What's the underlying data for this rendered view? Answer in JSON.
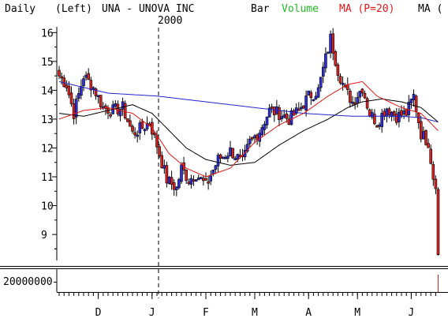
{
  "header": {
    "period": "Daily",
    "scale": "(Left)",
    "ticker": "UNA - UNOVA INC",
    "bar_label": "Bar",
    "volume_label": "Volume",
    "ma1_label": "MA (P=20)",
    "ma2_label": "MA (",
    "year_label": "2000"
  },
  "colors": {
    "up": "#2f2fd8",
    "down": "#d82222",
    "volume": "#22bb22",
    "ma_red": "#e01818",
    "ma_black": "#000000",
    "ma_blue": "#2222cc"
  },
  "chart_data": {
    "type": "candlestick",
    "y_ticks": [
      "16",
      "15",
      "14",
      "13",
      "12",
      "11",
      "10",
      "9"
    ],
    "ylim": [
      8.1,
      16.2
    ],
    "x_labels": [
      "D",
      "J",
      "F",
      "M",
      "A",
      "M",
      "J"
    ],
    "volume_tick": "20000000",
    "trading_days": 155,
    "month_start_index": [
      16,
      38,
      60,
      80,
      102,
      122,
      144
    ],
    "anchors": [
      [
        0,
        14.5
      ],
      [
        3,
        14.2
      ],
      [
        6,
        13.2
      ],
      [
        10,
        14.5
      ],
      [
        14,
        14.1
      ],
      [
        18,
        13.4
      ],
      [
        22,
        13.3
      ],
      [
        26,
        13.4
      ],
      [
        30,
        12.5
      ],
      [
        34,
        12.7
      ],
      [
        37,
        12.9
      ],
      [
        40,
        12.1
      ],
      [
        44,
        10.9
      ],
      [
        48,
        10.6
      ],
      [
        50,
        11.3
      ],
      [
        53,
        10.9
      ],
      [
        56,
        11.1
      ],
      [
        60,
        10.7
      ],
      [
        65,
        11.6
      ],
      [
        70,
        11.9
      ],
      [
        75,
        11.5
      ],
      [
        78,
        12.2
      ],
      [
        82,
        12.6
      ],
      [
        86,
        13.3
      ],
      [
        90,
        13.2
      ],
      [
        94,
        13.0
      ],
      [
        98,
        13.3
      ],
      [
        102,
        13.8
      ],
      [
        106,
        14.0
      ],
      [
        109,
        15.1
      ],
      [
        111,
        15.8
      ],
      [
        114,
        14.7
      ],
      [
        117,
        14.0
      ],
      [
        120,
        13.6
      ],
      [
        124,
        14.1
      ],
      [
        127,
        13.2
      ],
      [
        130,
        12.9
      ],
      [
        134,
        13.4
      ],
      [
        138,
        13.1
      ],
      [
        142,
        13.2
      ],
      [
        145,
        13.8
      ],
      [
        148,
        12.5
      ],
      [
        151,
        12.2
      ],
      [
        153,
        11.0
      ],
      [
        154,
        10.8
      ],
      [
        155,
        8.3
      ]
    ],
    "ma_red": [
      [
        0,
        13.0
      ],
      [
        10,
        13.3
      ],
      [
        20,
        13.4
      ],
      [
        30,
        13.2
      ],
      [
        38,
        12.7
      ],
      [
        45,
        11.8
      ],
      [
        52,
        11.3
      ],
      [
        60,
        11.0
      ],
      [
        70,
        11.3
      ],
      [
        80,
        12.2
      ],
      [
        90,
        12.8
      ],
      [
        100,
        13.2
      ],
      [
        110,
        13.8
      ],
      [
        118,
        14.2
      ],
      [
        124,
        14.3
      ],
      [
        130,
        13.8
      ],
      [
        140,
        13.4
      ],
      [
        148,
        13.2
      ],
      [
        155,
        12.6
      ]
    ],
    "ma_black": [
      [
        0,
        13.2
      ],
      [
        10,
        13.1
      ],
      [
        20,
        13.3
      ],
      [
        30,
        13.5
      ],
      [
        38,
        13.2
      ],
      [
        45,
        12.6
      ],
      [
        52,
        12.0
      ],
      [
        60,
        11.6
      ],
      [
        70,
        11.4
      ],
      [
        80,
        11.5
      ],
      [
        90,
        12.1
      ],
      [
        100,
        12.6
      ],
      [
        110,
        13.0
      ],
      [
        118,
        13.4
      ],
      [
        124,
        13.6
      ],
      [
        132,
        13.7
      ],
      [
        140,
        13.6
      ],
      [
        148,
        13.4
      ],
      [
        155,
        12.9
      ]
    ],
    "ma_blue": [
      [
        0,
        14.3
      ],
      [
        20,
        13.9
      ],
      [
        40,
        13.8
      ],
      [
        60,
        13.6
      ],
      [
        80,
        13.4
      ],
      [
        100,
        13.2
      ],
      [
        120,
        13.1
      ],
      [
        140,
        13.1
      ],
      [
        148,
        13.05
      ],
      [
        155,
        12.9
      ]
    ],
    "volume_bars": [
      [
        155,
        1.0
      ]
    ]
  }
}
